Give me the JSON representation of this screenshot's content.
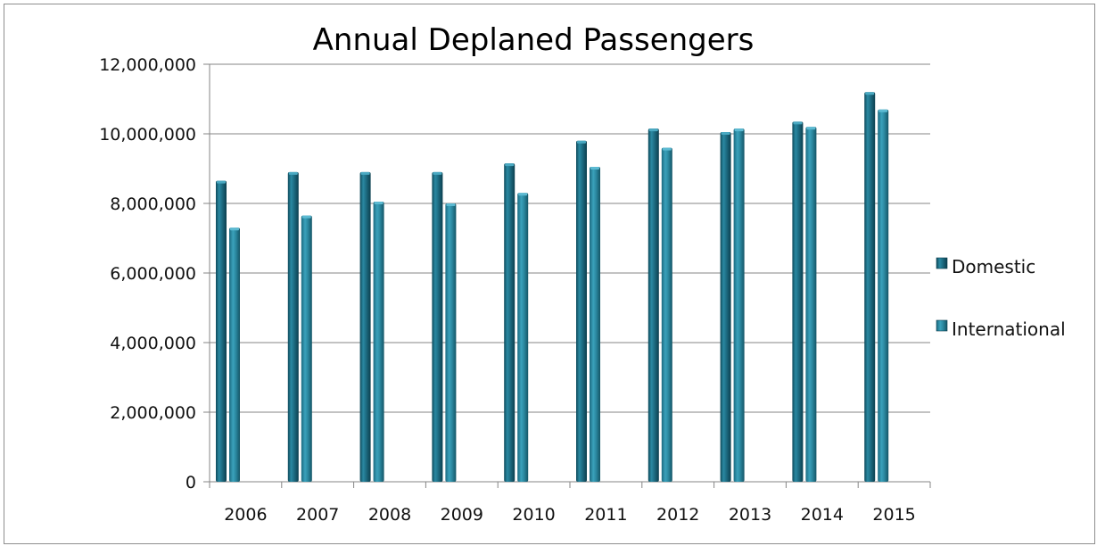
{
  "chart_data": {
    "type": "bar",
    "title": "Annual Deplaned Passengers",
    "xlabel": "",
    "ylabel": "",
    "categories": [
      "2006",
      "2007",
      "2008",
      "2009",
      "2010",
      "2011",
      "2012",
      "2013",
      "2014",
      "2015"
    ],
    "series": [
      {
        "name": "Domestic",
        "color": "#1e6f86",
        "values": [
          8650000,
          8900000,
          8900000,
          8900000,
          9150000,
          9800000,
          10150000,
          10050000,
          10350000,
          11200000
        ]
      },
      {
        "name": "International",
        "color": "#2c8aa2",
        "values": [
          7300000,
          7650000,
          8050000,
          8000000,
          8300000,
          9050000,
          9600000,
          10150000,
          10200000,
          10700000
        ]
      }
    ],
    "ylim": [
      0,
      12000000
    ],
    "yticks": [
      0,
      2000000,
      4000000,
      6000000,
      8000000,
      10000000,
      12000000
    ],
    "ytick_labels": [
      "0",
      "2,000,000",
      "4,000,000",
      "6,000,000",
      "8,000,000",
      "10,000,000",
      "12,000,000"
    ],
    "grid": true,
    "legend_position": "right"
  }
}
